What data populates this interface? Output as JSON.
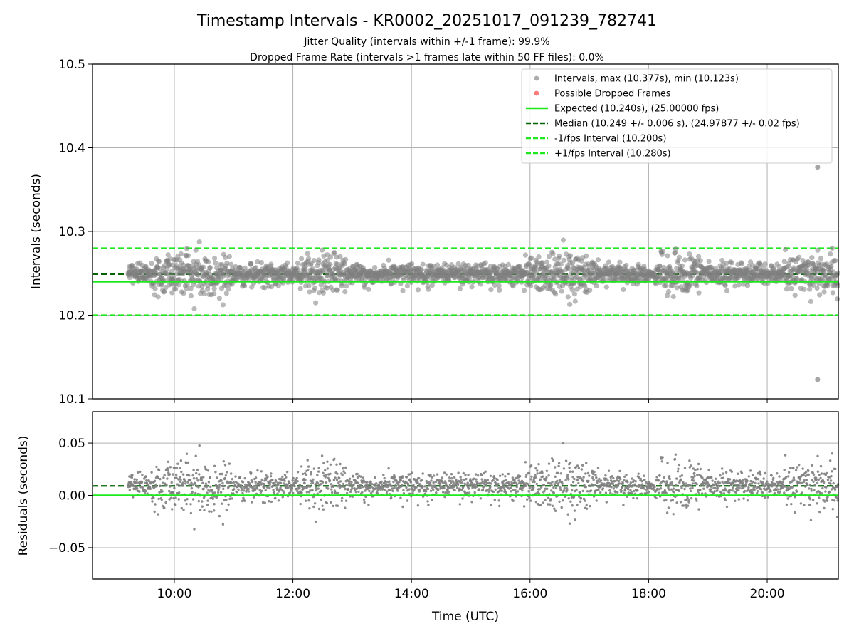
{
  "chart_data": [
    {
      "type": "scatter",
      "panel": "intervals",
      "title": "Timestamp Intervals - KR0002_20251017_091239_782741",
      "subtitle_1": "Jitter Quality (intervals within +/-1 frame): 99.9%",
      "subtitle_2": "Dropped Frame Rate (intervals >1 frames late within 50 FF files): 0.0%",
      "ylabel": "Intervals (seconds)",
      "ylim": [
        10.1,
        10.5
      ],
      "xlim_hours": [
        8.62,
        21.2
      ],
      "yticks": [
        "10.1",
        "10.2",
        "10.3",
        "10.4",
        "10.5"
      ],
      "grid": true,
      "legend_position": "top-right",
      "legend": [
        {
          "label": "Intervals, max (10.377s), min (10.123s)",
          "kind": "marker",
          "color": "#808080"
        },
        {
          "label": "Possible Dropped Frames",
          "kind": "marker",
          "color": "#ff3333"
        },
        {
          "label": "Expected (10.240s), (25.00000 fps)",
          "kind": "solid",
          "color": "#1ee81e"
        },
        {
          "label": "Median (10.249 +/- 0.006 s), (24.97877 +/- 0.02 fps)",
          "kind": "dashed",
          "color": "#006400"
        },
        {
          "label": "-1/fps Interval (10.200s)",
          "kind": "dashed",
          "color": "#1ee81e"
        },
        {
          "label": "+1/fps Interval (10.280s)",
          "kind": "dashed",
          "color": "#1ee81e"
        }
      ],
      "expected": 10.24,
      "median": 10.249,
      "lower_interval": 10.2,
      "upper_interval": 10.28,
      "max": 10.377,
      "min": 10.123,
      "max_time_hours": 20.85,
      "min_time_hours": 20.85,
      "data_start_hours": 9.22,
      "data_end_hours": 21.2,
      "noise_sd": 0.006,
      "high_noise_bands_hours": [
        [
          9.6,
          11.0
        ],
        [
          12.2,
          12.9
        ],
        [
          15.9,
          17.1
        ],
        [
          18.2,
          18.9
        ],
        [
          20.3,
          21.2
        ]
      ]
    },
    {
      "type": "scatter",
      "panel": "residuals",
      "ylabel": "Residuals (seconds)",
      "xlabel": "Time (UTC)",
      "ylim": [
        -0.08,
        0.08
      ],
      "yticks": [
        "−0.05",
        "0.00",
        "0.05"
      ],
      "ytick_values": [
        -0.05,
        0,
        0.05
      ],
      "xticks": [
        "10:00",
        "12:00",
        "14:00",
        "16:00",
        "18:00",
        "20:00"
      ],
      "xtick_values_hours": [
        10,
        12,
        14,
        16,
        18,
        20
      ],
      "zero_line": 0.0,
      "median_offset": 0.009,
      "grid": true
    }
  ],
  "colors": {
    "points": "#808080",
    "expected": "#1ee81e",
    "median": "#006400",
    "grid": "#b0b0b0"
  }
}
